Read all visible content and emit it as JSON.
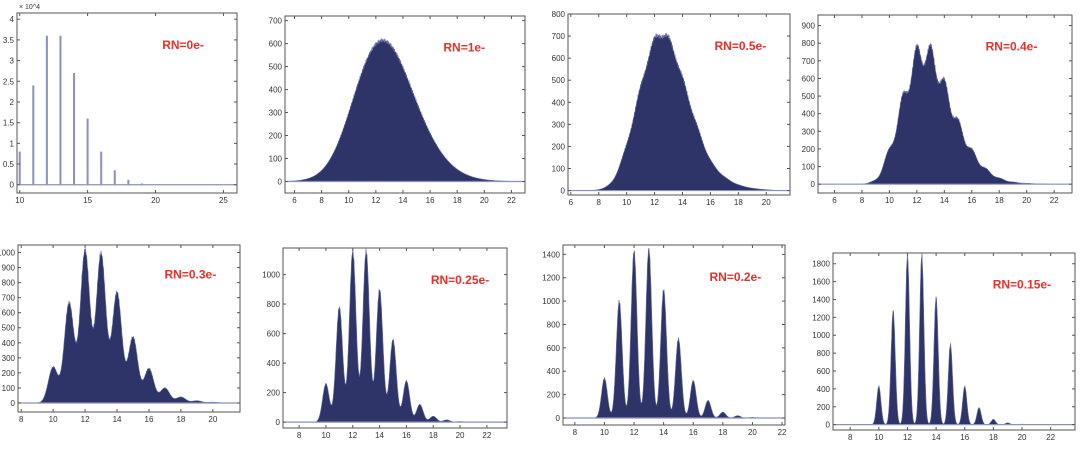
{
  "chart_data": [
    {
      "type": "bar",
      "label": "RN=0e-",
      "read_noise": 0,
      "y_multiplier": "× 10^4",
      "x": [
        10,
        11,
        12,
        13,
        14,
        15,
        16,
        17,
        18,
        19
      ],
      "values": [
        0.8,
        2.4,
        3.6,
        3.6,
        2.7,
        1.6,
        0.8,
        0.35,
        0.12,
        0.03
      ],
      "xlim": [
        9.8,
        26
      ],
      "ylim": [
        -0.2,
        4.15
      ],
      "xticks": [
        10,
        15,
        20,
        25
      ],
      "yticks": [
        0,
        0.5,
        1,
        1.5,
        2,
        2.5,
        3,
        3.5,
        4
      ],
      "color": "#8a90c0"
    },
    {
      "type": "area",
      "label": "RN=1e-",
      "read_noise": 1,
      "x": [
        7,
        8,
        9,
        10,
        11,
        12,
        13,
        14,
        15,
        16,
        17,
        18,
        19,
        20,
        21
      ],
      "values": [
        5,
        20,
        90,
        280,
        520,
        670,
        660,
        520,
        330,
        190,
        90,
        40,
        15,
        5,
        2
      ],
      "xlim": [
        5.3,
        23
      ],
      "ylim": [
        -50,
        720
      ],
      "xticks": [
        6,
        8,
        10,
        12,
        14,
        16,
        18,
        20,
        22
      ],
      "yticks": [
        0,
        100,
        200,
        300,
        400,
        500,
        600,
        700
      ],
      "color": "#2e3468"
    },
    {
      "type": "area",
      "label": "RN=0.5e-",
      "read_noise": 0.5,
      "x": [
        8,
        9,
        10,
        11,
        12,
        13,
        14,
        15,
        16,
        17,
        18,
        19,
        20
      ],
      "values": [
        2,
        30,
        200,
        480,
        720,
        720,
        520,
        300,
        130,
        60,
        25,
        10,
        4
      ],
      "xlim": [
        5.8,
        21.7
      ],
      "ylim": [
        -20,
        800
      ],
      "xticks": [
        6,
        8,
        10,
        12,
        14,
        16,
        18,
        20
      ],
      "yticks": [
        0,
        100,
        200,
        300,
        400,
        500,
        600,
        700,
        800
      ],
      "color": "#2e3468"
    },
    {
      "type": "area",
      "label": "RN=0.4e-",
      "read_noise": 0.4,
      "x": [
        9,
        10,
        11,
        12,
        13,
        14,
        15,
        16,
        17,
        18,
        19,
        20,
        21
      ],
      "values": [
        20,
        200,
        520,
        800,
        800,
        600,
        370,
        200,
        90,
        35,
        12,
        5,
        2
      ],
      "xlim": [
        4.8,
        23.3
      ],
      "ylim": [
        -50,
        960
      ],
      "xticks": [
        6,
        8,
        10,
        12,
        14,
        16,
        18,
        20,
        22
      ],
      "yticks": [
        0,
        100,
        200,
        300,
        400,
        500,
        600,
        700,
        800,
        900
      ],
      "color": "#2e3468"
    },
    {
      "type": "area",
      "label": "RN=0.3e-",
      "read_noise": 0.3,
      "x": [
        10,
        11,
        12,
        13,
        14,
        15,
        16,
        17,
        18,
        19,
        20
      ],
      "values": [
        240,
        670,
        1020,
        1000,
        740,
        440,
        230,
        100,
        40,
        15,
        5
      ],
      "xlim": [
        7.8,
        21.7
      ],
      "ylim": [
        -60,
        1050
      ],
      "xticks": [
        8,
        10,
        12,
        14,
        16,
        18,
        20
      ],
      "yticks": [
        0,
        100,
        200,
        300,
        400,
        500,
        600,
        700,
        800,
        900,
        1000
      ],
      "color": "#2e3468"
    },
    {
      "type": "area",
      "label": "RN=0.25e-",
      "read_noise": 0.25,
      "x": [
        10,
        11,
        12,
        13,
        14,
        15,
        16,
        17,
        18,
        19,
        20
      ],
      "values": [
        260,
        780,
        1160,
        1160,
        900,
        560,
        280,
        120,
        40,
        15,
        4
      ],
      "xlim": [
        6.8,
        23.5
      ],
      "ylim": [
        -40,
        1180
      ],
      "xticks": [
        8,
        10,
        12,
        14,
        16,
        18,
        20,
        22
      ],
      "yticks": [
        0,
        200,
        400,
        600,
        800,
        1000
      ],
      "color": "#2e3468"
    },
    {
      "type": "area",
      "label": "RN=0.2e-",
      "read_noise": 0.2,
      "x": [
        10,
        11,
        12,
        13,
        14,
        15,
        16,
        17,
        18,
        19,
        20
      ],
      "values": [
        340,
        1000,
        1430,
        1450,
        1100,
        680,
        320,
        150,
        50,
        20,
        5
      ],
      "xlim": [
        7.2,
        22.2
      ],
      "ylim": [
        -60,
        1480
      ],
      "xticks": [
        8,
        10,
        12,
        14,
        16,
        18,
        20,
        22
      ],
      "yticks": [
        0,
        200,
        400,
        600,
        800,
        1000,
        1200,
        1400
      ],
      "color": "#2e3468"
    },
    {
      "type": "area",
      "label": "RN=0.15e-",
      "read_noise": 0.15,
      "x": [
        10,
        11,
        12,
        13,
        14,
        15,
        16,
        17,
        18,
        19,
        20
      ],
      "values": [
        430,
        1280,
        1900,
        1900,
        1430,
        900,
        430,
        190,
        60,
        20,
        5
      ],
      "xlim": [
        6.8,
        23.7
      ],
      "ylim": [
        -60,
        1920
      ],
      "xticks": [
        8,
        10,
        12,
        14,
        16,
        18,
        20,
        22
      ],
      "yticks": [
        0,
        200,
        400,
        600,
        800,
        1000,
        1200,
        1400,
        1600,
        1800
      ],
      "color": "#2e3468"
    }
  ]
}
